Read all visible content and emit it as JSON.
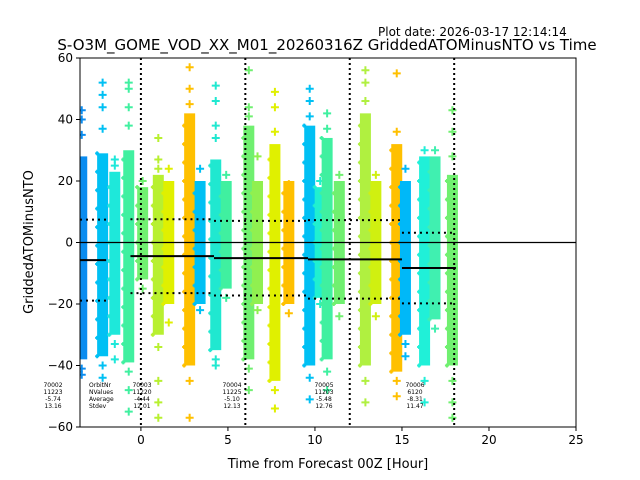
{
  "plot_date": "Plot date: 2026-03-17 12:14:14",
  "chart_data": {
    "type": "scatter",
    "title": "S-O3M_GOME_VOD_XX_M01_20260316Z GriddedATOMinusNTO vs Time",
    "xlabel": "Time from Forecast 00Z [Hour]",
    "ylabel": "GriddedATOMinusNTO",
    "xlim": [
      -3.5,
      25
    ],
    "ylim": [
      -60,
      60
    ],
    "xticks": [
      0,
      5,
      10,
      15,
      20,
      25
    ],
    "yticks": [
      -60,
      -40,
      -20,
      0,
      20,
      40,
      60
    ],
    "xtick_labels": [
      "0",
      "5",
      "10",
      "15",
      "20",
      "25"
    ],
    "ytick_labels": [
      "−60",
      "−40",
      "−20",
      "0",
      "20",
      "40",
      "60"
    ],
    "vertical_dotted_lines": [
      0,
      6,
      12,
      18
    ],
    "zero_line": 0,
    "strips": [
      {
        "x": -3.4,
        "color": "#0a8cf0",
        "top": 28,
        "bottom": -38,
        "out_top": [
          35,
          40,
          43
        ],
        "out_bot": [
          -41,
          -43
        ]
      },
      {
        "x": -2.2,
        "color": "#00c0f4",
        "top": 29,
        "bottom": -37,
        "out_top": [
          37,
          44,
          48,
          52
        ],
        "out_bot": [
          -40,
          -44
        ]
      },
      {
        "x": -1.5,
        "color": "#1ee8da",
        "top": 23,
        "bottom": -30,
        "out_top": [
          25,
          27
        ],
        "out_bot": [
          -33,
          -38
        ]
      },
      {
        "x": -0.7,
        "color": "#40f0a0",
        "top": 30,
        "bottom": -39,
        "out_top": [
          38,
          44,
          50,
          52
        ],
        "out_bot": [
          -42,
          -48,
          -55
        ]
      },
      {
        "x": 0.1,
        "color": "#70f070",
        "top": 18,
        "bottom": -12,
        "out_top": [
          20
        ],
        "out_bot": [
          -15
        ]
      },
      {
        "x": 1.0,
        "color": "#b8f030",
        "top": 22,
        "bottom": -30,
        "out_top": [
          24,
          27,
          34
        ],
        "out_bot": [
          -34,
          -45,
          -52,
          -57
        ]
      },
      {
        "x": 1.6,
        "color": "#e0f000",
        "top": 20,
        "bottom": -20,
        "out_top": [
          24
        ],
        "out_bot": [
          -26
        ]
      },
      {
        "x": 2.8,
        "color": "#ffc000",
        "top": 42,
        "bottom": -40,
        "out_top": [
          45,
          50,
          57
        ],
        "out_bot": [
          -45,
          -57
        ]
      },
      {
        "x": 3.4,
        "color": "#00c0f4",
        "top": 20,
        "bottom": -20,
        "out_top": [
          24
        ],
        "out_bot": [
          -22
        ]
      },
      {
        "x": 4.3,
        "color": "#20e8d0",
        "top": 27,
        "bottom": -35,
        "out_top": [
          34,
          38,
          46,
          51
        ],
        "out_bot": [
          -38,
          -40
        ]
      },
      {
        "x": 4.9,
        "color": "#40f0a0",
        "top": 20,
        "bottom": -15,
        "out_top": [
          22
        ],
        "out_bot": [
          -18
        ]
      },
      {
        "x": 6.2,
        "color": "#70f070",
        "top": 38,
        "bottom": -38,
        "out_top": [
          41,
          44,
          56
        ],
        "out_bot": [
          -41,
          -48
        ]
      },
      {
        "x": 6.7,
        "color": "#90f050",
        "top": 20,
        "bottom": -20,
        "out_top": [
          28
        ],
        "out_bot": [
          -22
        ]
      },
      {
        "x": 7.7,
        "color": "#e0f000",
        "top": 32,
        "bottom": -45,
        "out_top": [
          36,
          44,
          49
        ],
        "out_bot": [
          -48,
          -54
        ]
      },
      {
        "x": 8.5,
        "color": "#ffc000",
        "top": 20,
        "bottom": -20,
        "out_top": [
          19
        ],
        "out_bot": [
          -23
        ]
      },
      {
        "x": 9.7,
        "color": "#00c0f4",
        "top": 38,
        "bottom": -40,
        "out_top": [
          41,
          46,
          50
        ],
        "out_bot": [
          -44,
          -51
        ]
      },
      {
        "x": 10.3,
        "color": "#20f0d0",
        "top": 18,
        "bottom": -18,
        "out_top": [
          20
        ],
        "out_bot": [
          -20
        ]
      },
      {
        "x": 10.7,
        "color": "#40f0a0",
        "top": 34,
        "bottom": -38,
        "out_top": [
          37,
          42
        ],
        "out_bot": [
          -42,
          -48
        ]
      },
      {
        "x": 11.4,
        "color": "#70f070",
        "top": 20,
        "bottom": -20,
        "out_top": [
          22
        ],
        "out_bot": [
          -24
        ]
      },
      {
        "x": 12.9,
        "color": "#b0f040",
        "top": 42,
        "bottom": -40,
        "out_top": [
          46,
          52,
          56
        ],
        "out_bot": [
          -45,
          -52
        ]
      },
      {
        "x": 13.5,
        "color": "#d0f010",
        "top": 20,
        "bottom": -20,
        "out_top": [
          22
        ],
        "out_bot": [
          -24
        ]
      },
      {
        "x": 14.7,
        "color": "#ffc000",
        "top": 32,
        "bottom": -42,
        "out_top": [
          36,
          55
        ],
        "out_bot": [
          -45,
          -50
        ]
      },
      {
        "x": 15.2,
        "color": "#00b8f8",
        "top": 20,
        "bottom": -30,
        "out_top": [
          24
        ],
        "out_bot": [
          -33,
          -37
        ]
      },
      {
        "x": 16.3,
        "color": "#20f0d8",
        "top": 28,
        "bottom": -40,
        "out_top": [
          30
        ],
        "out_bot": [
          -45,
          -52
        ]
      },
      {
        "x": 16.9,
        "color": "#40f0b0",
        "top": 28,
        "bottom": -25,
        "out_top": [
          30
        ],
        "out_bot": [
          -28
        ]
      },
      {
        "x": 17.9,
        "color": "#70f070",
        "top": 22,
        "bottom": -40,
        "out_top": [
          28,
          36,
          43
        ],
        "out_bot": [
          -45,
          -52,
          -57
        ]
      }
    ],
    "orbit_stats": [
      {
        "orbit": "70002",
        "nvalues": "11223",
        "average": "-5.74",
        "stdev": "13.16",
        "x0": -3.5,
        "x1": -2.0,
        "mean": -5.74,
        "upper": 7.42,
        "lower": -18.9
      },
      {
        "orbit": "70003",
        "nvalues": "11220",
        "average": "-4.44",
        "stdev": "12.01",
        "x0": -0.6,
        "x1": 4.2,
        "mean": -4.44,
        "upper": 7.57,
        "lower": -16.45
      },
      {
        "orbit": "70004",
        "nvalues": "11225",
        "average": "-5.10",
        "stdev": "12.13",
        "x0": 4.2,
        "x1": 9.6,
        "mean": -5.1,
        "upper": 7.03,
        "lower": -17.23
      },
      {
        "orbit": "70005",
        "nvalues": "11203",
        "average": "-5.48",
        "stdev": "12.76",
        "x0": 9.6,
        "x1": 15.0,
        "mean": -5.48,
        "upper": 7.28,
        "lower": -18.24
      },
      {
        "orbit": "70006",
        "nvalues": "6120",
        "average": "-8.31",
        "stdev": "11.47",
        "x0": 15.0,
        "x1": 18.1,
        "mean": -8.31,
        "upper": 3.16,
        "lower": -19.78
      }
    ],
    "stats_row_labels": [
      "OrbitNr",
      "NValues",
      "Average",
      "Stdev"
    ]
  }
}
